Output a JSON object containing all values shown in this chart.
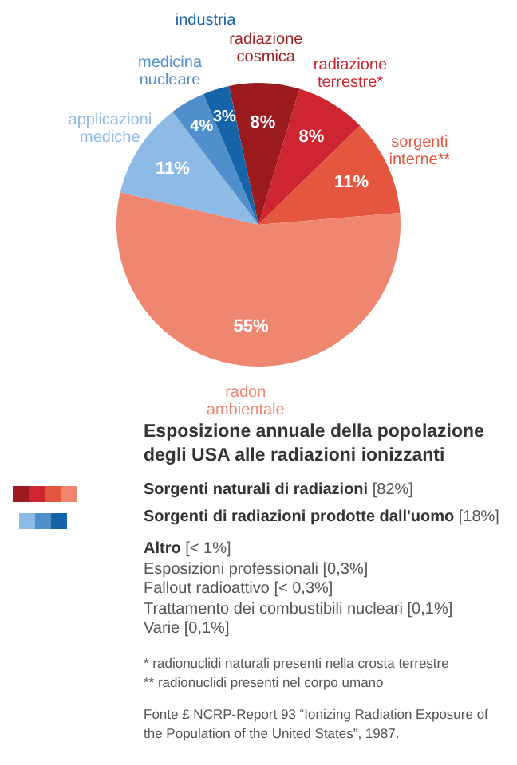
{
  "chart_data": {
    "type": "pie",
    "title": "Esposizione annuale della popolazione degli USA alle radiazioni ionizzanti",
    "categories": [
      "radiazione cosmica",
      "radiazione terrestre*",
      "sorgenti interne**",
      "radon ambientale",
      "applicazioni mediche",
      "medicina nucleare",
      "industria"
    ],
    "values": [
      8,
      8,
      11,
      55,
      11,
      4,
      3
    ],
    "value_labels": [
      "8%",
      "8%",
      "11%",
      "55%",
      "11%",
      "4%",
      "3%"
    ],
    "colors": [
      "#9b1b1e",
      "#cf2530",
      "#e4563e",
      "#ee8670",
      "#8dbbe6",
      "#4f8fcc",
      "#1664a8"
    ],
    "annotations": [
      "Sorgenti naturali di radiazioni [82%]",
      "Sorgenti di radiazioni prodotte dall'uomo [18%]",
      "Altro [< 1%]",
      "Esposizioni professionali [0,3%]",
      "Fallout radioattivo [< 0,3%]",
      "Trattamento dei combustibili nucleari [0,1%]",
      "Varie [0,1%]",
      "* radionuclidi naturali presenti nella crosta terrestre",
      "** radionuclidi presenti nel corpo umano",
      "Fonte £ NCRP-Report 93 “Ionizing Radiation Exposure of the Population of the United States”, 1987."
    ]
  }
}
